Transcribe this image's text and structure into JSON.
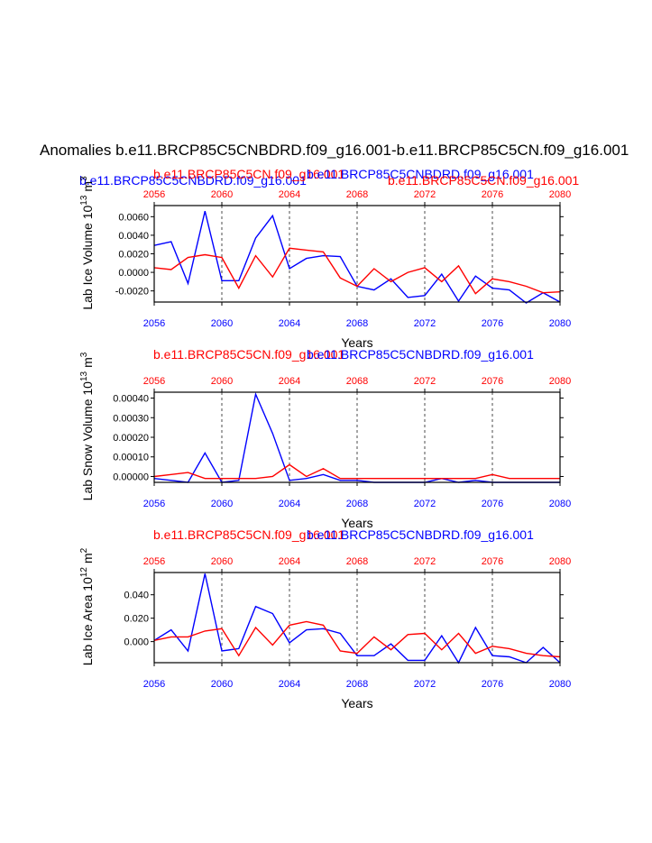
{
  "figure": {
    "title": "Anomalies b.e11.BRCP85C5CNBDRD.f09_g16.001-b.e11.BRCP85C5CN.f09_g16.001"
  },
  "colors": {
    "blue": "#0000ff",
    "red": "#ff0000",
    "black": "#000000"
  },
  "chart_data": [
    {
      "type": "line",
      "ylabel": "Lab Ice Volume 10^13 m^3",
      "ylabel_text": "Lab Ice Volume 10",
      "ylabel_exp": "13",
      "ylabel_unit": "m",
      "ylabel_unit_exp": "3",
      "xlabel": "Years",
      "top_titles": [
        {
          "text": "b.e11.BRCP85C5CNBDRD.f09_g16.001",
          "color": "blue"
        },
        {
          "text": "b.e11.BRCP85C5CN.f09_g16.001",
          "color": "red"
        },
        {
          "text": "b.e11.BRCP85C5CNBDRD.f09_g16.001",
          "color": "blue"
        },
        {
          "text": "b.e11.BRCP85C5CN.f09_g16.001",
          "color": "red"
        }
      ],
      "x": [
        2056,
        2057,
        2058,
        2059,
        2060,
        2061,
        2062,
        2063,
        2064,
        2065,
        2066,
        2067,
        2068,
        2069,
        2070,
        2071,
        2072,
        2073,
        2074,
        2075,
        2076,
        2077,
        2078,
        2079,
        2080
      ],
      "xlim": [
        2056,
        2080
      ],
      "ylim": [
        -0.0032,
        0.0072
      ],
      "yticks": [
        -0.002,
        0.0,
        0.002,
        0.004,
        0.006
      ],
      "ytick_labels": [
        "-0.0020",
        "0.0000",
        "0.0020",
        "0.0040",
        "0.0060"
      ],
      "xticks": [
        2056,
        2060,
        2064,
        2068,
        2072,
        2076,
        2080
      ],
      "xtick_labels": [
        "2056",
        "2060",
        "2064",
        "2068",
        "2072",
        "2076",
        "2080"
      ],
      "series": [
        {
          "name": "b.e11.BRCP85C5CNBDRD.f09_g16.001",
          "color": "blue",
          "values": [
            0.0029,
            0.0033,
            -0.0012,
            0.0066,
            -0.0009,
            -0.0009,
            0.0037,
            0.0061,
            0.0004,
            0.0015,
            0.0018,
            0.0017,
            -0.0015,
            -0.0019,
            -0.0007,
            -0.0027,
            -0.0025,
            -0.0002,
            -0.0031,
            -0.0004,
            -0.0017,
            -0.0019,
            -0.0033,
            -0.0022,
            -0.0032
          ]
        },
        {
          "name": "b.e11.BRCP85C5CN.f09_g16.001",
          "color": "red",
          "values": [
            0.0005,
            0.0003,
            0.0016,
            0.0019,
            0.0016,
            -0.0017,
            0.0018,
            -0.0005,
            0.0026,
            0.0024,
            0.0022,
            -0.0006,
            -0.0015,
            0.0004,
            -0.001,
            0.0,
            0.0005,
            -0.001,
            0.0007,
            -0.0023,
            -0.0007,
            -0.001,
            -0.0015,
            -0.0022,
            -0.0021
          ]
        }
      ]
    },
    {
      "type": "line",
      "ylabel": "Lab Snow Volume 10^13 m^3",
      "ylabel_text": "Lab Snow Volume 10",
      "ylabel_exp": "13",
      "ylabel_unit": "m",
      "ylabel_unit_exp": "3",
      "xlabel": "Years",
      "top_titles": [
        {
          "text": "b.e11.BRCP85C5CN.f09_g16.001",
          "color": "red"
        },
        {
          "text": "b.e11.BRCP85C5CNBDRD.f09_g16.001",
          "color": "blue"
        }
      ],
      "x": [
        2056,
        2057,
        2058,
        2059,
        2060,
        2061,
        2062,
        2063,
        2064,
        2065,
        2066,
        2067,
        2068,
        2069,
        2070,
        2071,
        2072,
        2073,
        2074,
        2075,
        2076,
        2077,
        2078,
        2079,
        2080
      ],
      "xlim": [
        2056,
        2080
      ],
      "ylim": [
        -3e-05,
        0.00043
      ],
      "yticks": [
        0.0,
        0.0001,
        0.0002,
        0.0003,
        0.0004
      ],
      "ytick_labels": [
        "0.00000",
        "0.00010",
        "0.00020",
        "0.00030",
        "0.00040"
      ],
      "xticks": [
        2056,
        2060,
        2064,
        2068,
        2072,
        2076,
        2080
      ],
      "xtick_labels": [
        "2056",
        "2060",
        "2064",
        "2068",
        "2072",
        "2076",
        "2080"
      ],
      "series": [
        {
          "name": "b.e11.BRCP85C5CNBDRD.f09_g16.001",
          "color": "blue",
          "values": [
            -1e-05,
            -2e-05,
            -3e-05,
            0.00012,
            -3e-05,
            -2e-05,
            0.00042,
            0.00022,
            -2e-05,
            -1e-05,
            1e-05,
            -2e-05,
            -2e-05,
            -3e-05,
            -3e-05,
            -3e-05,
            -3e-05,
            -1e-05,
            -3e-05,
            -2e-05,
            -3e-05,
            -3e-05,
            -3e-05,
            -3e-05,
            -3e-05
          ]
        },
        {
          "name": "b.e11.BRCP85C5CN.f09_g16.001",
          "color": "red",
          "values": [
            0.0,
            1e-05,
            2e-05,
            -1e-05,
            -1e-05,
            -1e-05,
            -1e-05,
            0.0,
            6e-05,
            0.0,
            4e-05,
            -1e-05,
            -1e-05,
            -1e-05,
            -1e-05,
            -1e-05,
            -1e-05,
            -1e-05,
            -1e-05,
            -1e-05,
            1e-05,
            -1e-05,
            -1e-05,
            -1e-05,
            -1e-05
          ]
        }
      ]
    },
    {
      "type": "line",
      "ylabel": "Lab Ice Area 10^12 m^2",
      "ylabel_text": "Lab Ice Area 10",
      "ylabel_exp": "12",
      "ylabel_unit": "m",
      "ylabel_unit_exp": "2",
      "xlabel": "Years",
      "top_titles": [
        {
          "text": "b.e11.BRCP85C5CN.f09_g16.001",
          "color": "red"
        },
        {
          "text": "b.e11.BRCP85C5CNBDRD.f09_g16.001",
          "color": "blue"
        }
      ],
      "x": [
        2056,
        2057,
        2058,
        2059,
        2060,
        2061,
        2062,
        2063,
        2064,
        2065,
        2066,
        2067,
        2068,
        2069,
        2070,
        2071,
        2072,
        2073,
        2074,
        2075,
        2076,
        2077,
        2078,
        2079,
        2080
      ],
      "xlim": [
        2056,
        2080
      ],
      "ylim": [
        -0.018,
        0.059
      ],
      "yticks": [
        0.0,
        0.02,
        0.04
      ],
      "ytick_labels": [
        "0.000",
        "0.020",
        "0.040"
      ],
      "xticks": [
        2056,
        2060,
        2064,
        2068,
        2072,
        2076,
        2080
      ],
      "xtick_labels": [
        "2056",
        "2060",
        "2064",
        "2068",
        "2072",
        "2076",
        "2080"
      ],
      "series": [
        {
          "name": "b.e11.BRCP85C5CNBDRD.f09_g16.001",
          "color": "blue",
          "values": [
            0.001,
            0.01,
            -0.008,
            0.058,
            -0.008,
            -0.006,
            0.03,
            0.024,
            -0.001,
            0.01,
            0.011,
            0.007,
            -0.012,
            -0.012,
            -0.002,
            -0.016,
            -0.016,
            0.005,
            -0.018,
            0.012,
            -0.012,
            -0.013,
            -0.018,
            -0.005,
            -0.018
          ]
        },
        {
          "name": "b.e11.BRCP85C5CN.f09_g16.001",
          "color": "red",
          "values": [
            0.001,
            0.004,
            0.004,
            0.009,
            0.011,
            -0.012,
            0.012,
            -0.003,
            0.014,
            0.017,
            0.014,
            -0.008,
            -0.01,
            0.004,
            -0.007,
            0.006,
            0.007,
            -0.007,
            0.007,
            -0.01,
            -0.004,
            -0.006,
            -0.01,
            -0.012,
            -0.013
          ]
        }
      ]
    }
  ]
}
